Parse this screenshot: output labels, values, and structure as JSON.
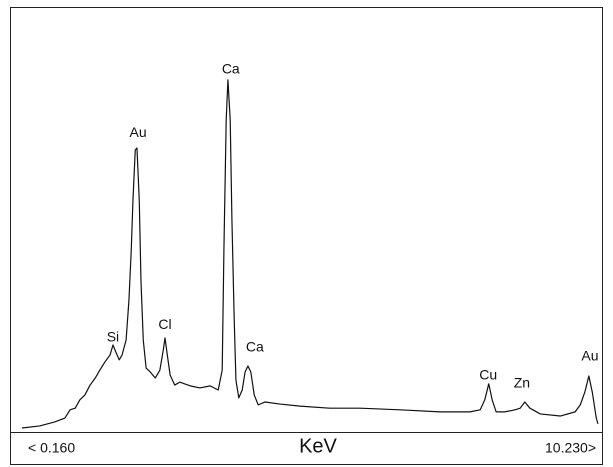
{
  "chart_data": {
    "type": "line",
    "x_label": "KeV",
    "color": "#111111",
    "xlim": [
      0.16,
      10.23
    ],
    "xticks": [
      {
        "value": 0.16,
        "label": "< 0.160"
      },
      {
        "value": 10.23,
        "label": "10.230>"
      }
    ],
    "ylim": [
      0,
      100
    ],
    "x": [
      0.16,
      0.47,
      0.74,
      0.91,
      1.0,
      1.09,
      1.17,
      1.26,
      1.35,
      1.44,
      1.52,
      1.61,
      1.7,
      1.75,
      1.8,
      1.86,
      1.91,
      1.98,
      2.03,
      2.07,
      2.1,
      2.14,
      2.17,
      2.21,
      2.24,
      2.28,
      2.33,
      2.4,
      2.49,
      2.57,
      2.63,
      2.66,
      2.7,
      2.75,
      2.83,
      2.92,
      3.1,
      3.27,
      3.45,
      3.59,
      3.66,
      3.69,
      3.73,
      3.76,
      3.8,
      3.83,
      3.87,
      3.9,
      3.95,
      4.01,
      4.06,
      4.11,
      4.16,
      4.22,
      4.29,
      4.41,
      4.67,
      5.02,
      5.54,
      6.07,
      6.77,
      7.47,
      7.99,
      8.17,
      8.25,
      8.32,
      8.38,
      8.45,
      8.6,
      8.78,
      8.87,
      8.95,
      9.04,
      9.22,
      9.57,
      9.83,
      9.92,
      10.0,
      10.07,
      10.13,
      10.2,
      10.23
    ],
    "values": [
      0,
      0.5,
      1.5,
      2.4,
      4.4,
      4.8,
      6.8,
      8.0,
      10.4,
      12.1,
      14.0,
      16.0,
      17.7,
      20.1,
      18.4,
      16.5,
      17.7,
      21.3,
      31.0,
      43.1,
      55.2,
      67.3,
      67.8,
      55.2,
      35.6,
      21.3,
      14.5,
      13.6,
      12.1,
      14.0,
      18.9,
      21.8,
      17.7,
      12.8,
      10.4,
      11.1,
      10.2,
      9.7,
      10.2,
      9.2,
      14.0,
      43.1,
      74.6,
      84.3,
      74.6,
      50.4,
      26.2,
      11.6,
      7.3,
      9.2,
      13.6,
      15.0,
      13.6,
      8.0,
      5.6,
      6.3,
      5.8,
      5.3,
      4.8,
      4.8,
      4.4,
      3.9,
      3.9,
      4.4,
      6.8,
      10.7,
      6.8,
      3.9,
      3.9,
      4.4,
      4.8,
      6.3,
      4.8,
      3.4,
      2.9,
      3.9,
      5.6,
      8.7,
      12.6,
      8.7,
      2.4,
      1.0
    ],
    "annotations": [
      {
        "text": "Si",
        "x": 1.75,
        "y": 21.8
      },
      {
        "text": "Au",
        "x": 2.19,
        "y": 71.4
      },
      {
        "text": "Cl",
        "x": 2.66,
        "y": 24.9
      },
      {
        "text": "Ca",
        "x": 3.81,
        "y": 86.7
      },
      {
        "text": "Ca",
        "x": 4.23,
        "y": 19.4
      },
      {
        "text": "Cu",
        "x": 8.31,
        "y": 12.6
      },
      {
        "text": "Zn",
        "x": 8.9,
        "y": 10.7
      },
      {
        "text": "Au",
        "x": 10.09,
        "y": 17.2
      }
    ]
  }
}
